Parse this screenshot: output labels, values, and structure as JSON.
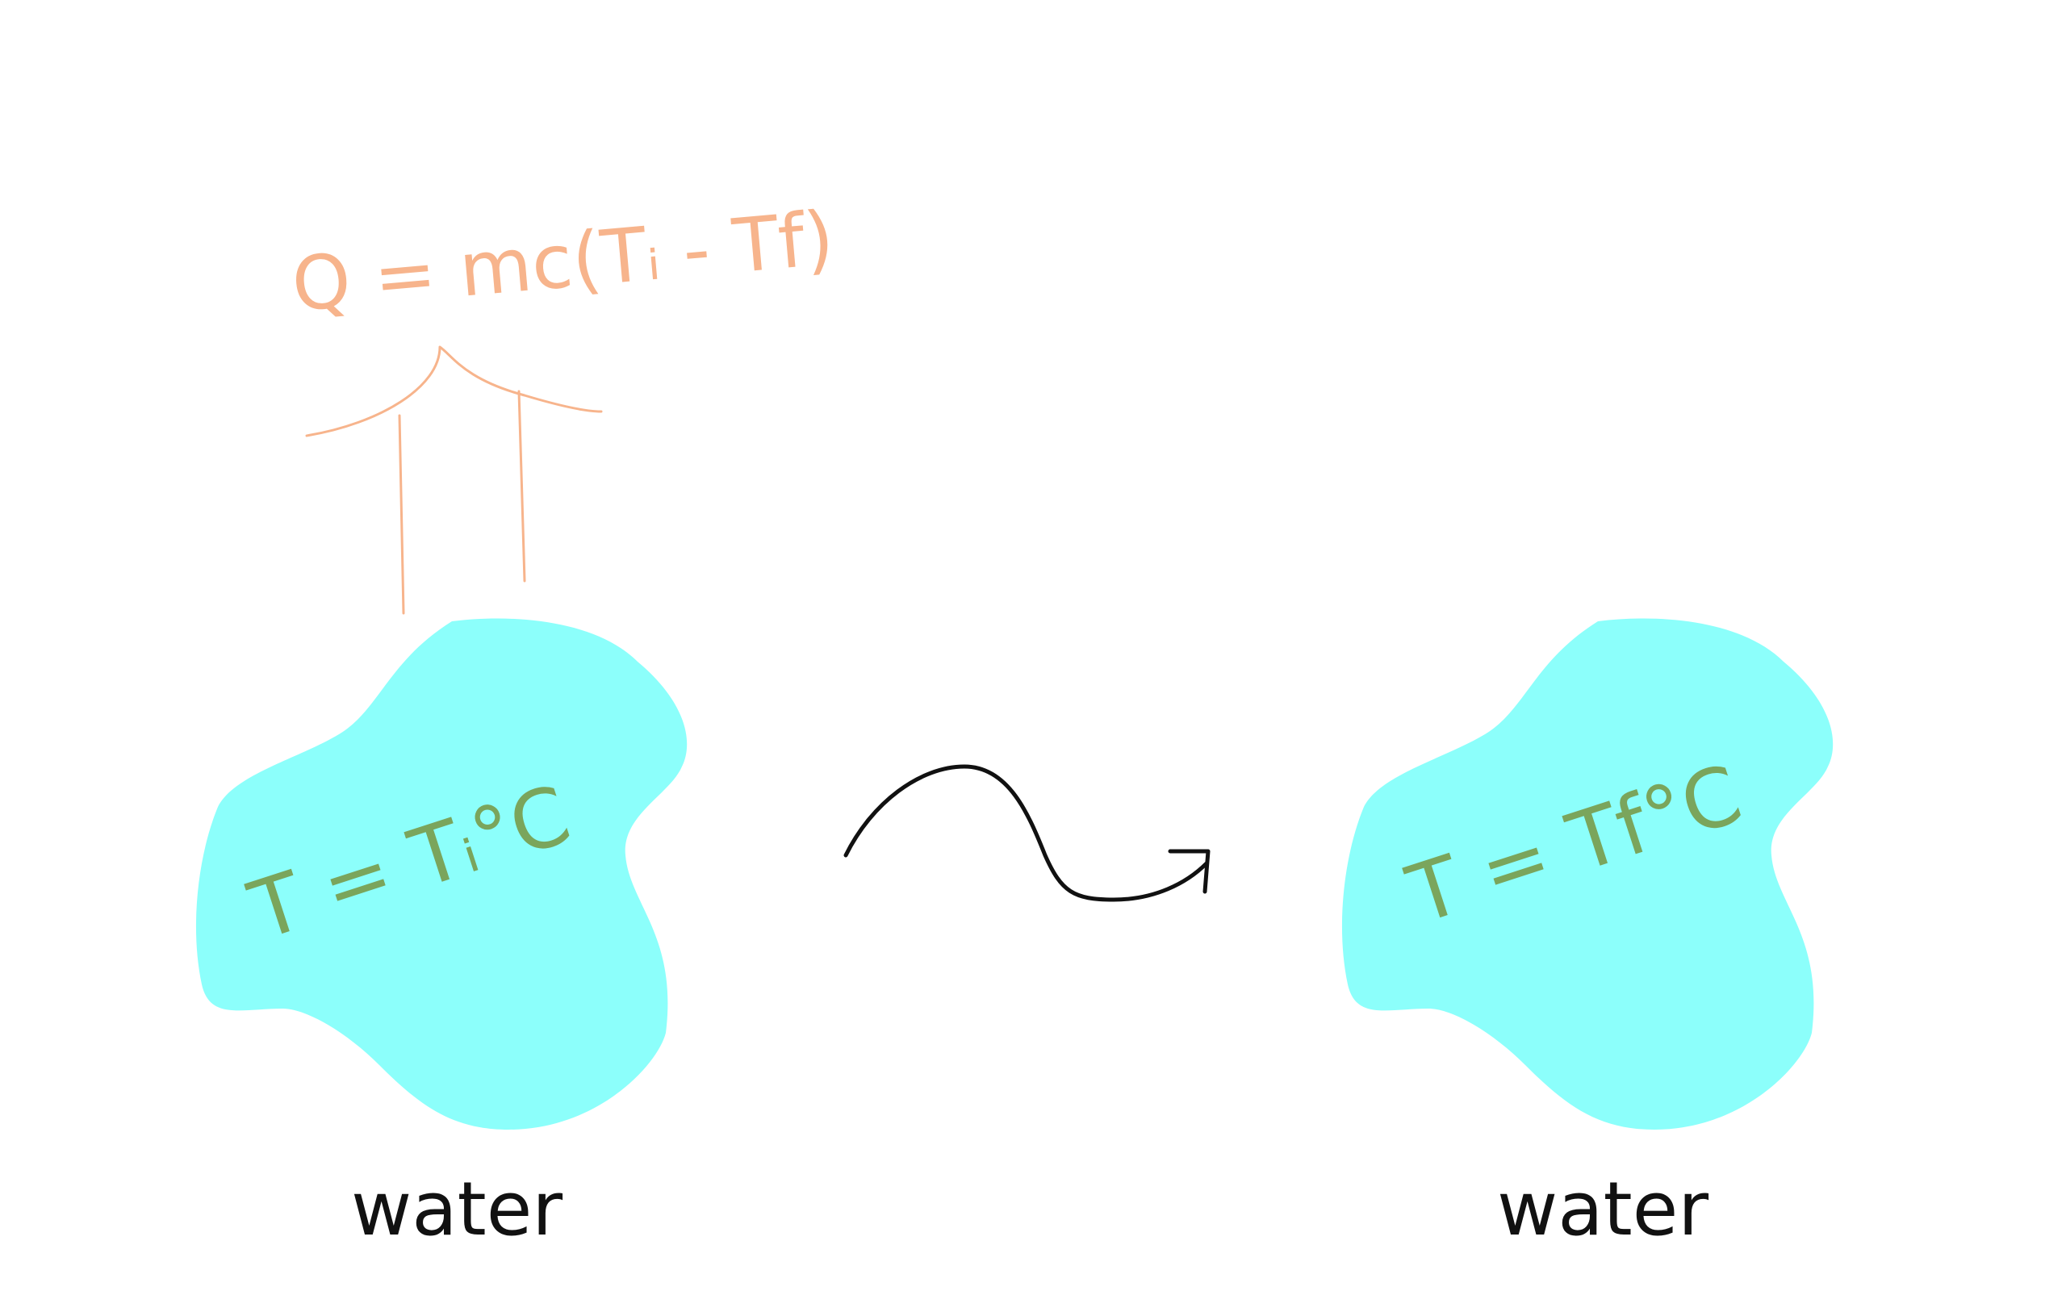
{
  "formula": {
    "text": "Q = mc(Tᵢ - Tf)",
    "color": "#f7b48c"
  },
  "left_blob": {
    "temperature_label": "T = Tᵢ°C",
    "caption": "water",
    "fill_color": "#8cfffb",
    "label_color": "#7aa55c"
  },
  "right_blob": {
    "temperature_label": "T = Tf°C",
    "caption": "water",
    "fill_color": "#8cfffb",
    "label_color": "#7aa55c"
  },
  "process_arrow": {
    "color": "#111111"
  }
}
